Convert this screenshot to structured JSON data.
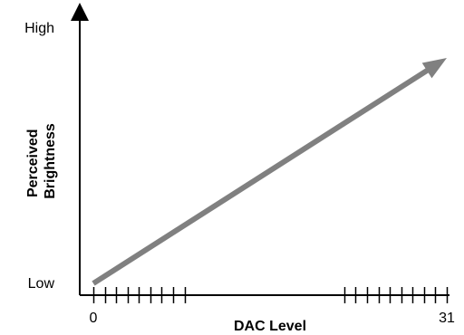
{
  "chart_data": {
    "type": "line",
    "xlabel": "DAC Level",
    "ylabel_lines": [
      "Perceived",
      "Brightness"
    ],
    "x_tick_labels": [
      "0",
      "31"
    ],
    "y_tick_labels": {
      "low": "Low",
      "high": "High"
    },
    "xlim": [
      0,
      31
    ],
    "ylim": [
      0,
      1
    ],
    "series": [
      {
        "x": [
          0,
          31
        ],
        "y": [
          0,
          0.88
        ]
      }
    ],
    "x_ticks_shown": [
      0,
      1,
      2,
      3,
      4,
      5,
      6,
      7,
      8,
      22,
      23,
      24,
      25,
      26,
      27,
      28,
      29,
      30,
      31
    ],
    "line_color": "#808080",
    "axis_color": "#000000"
  }
}
